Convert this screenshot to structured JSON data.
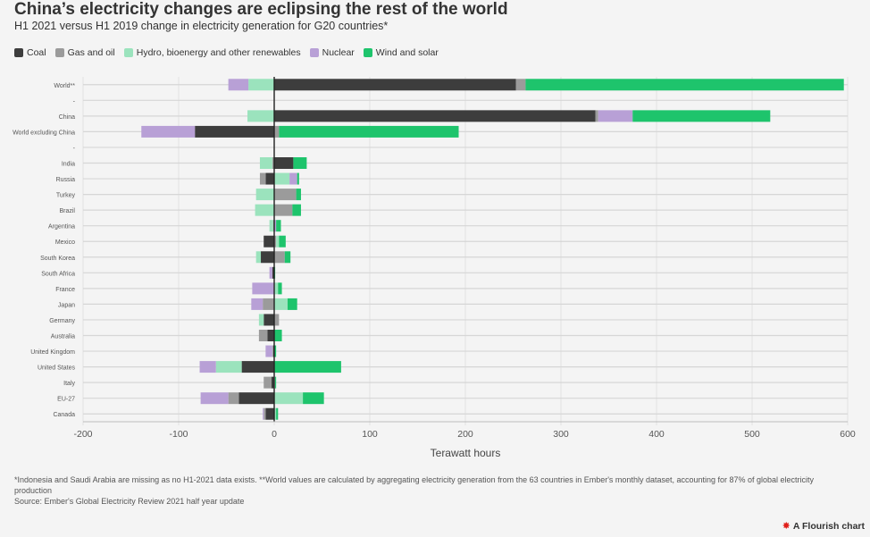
{
  "title": "China’s electricity changes are eclipsing the rest of the world",
  "subtitle": "H1 2021 versus H1 2019 change in electricity generation for G20 countries*",
  "legend": [
    {
      "label": "Coal",
      "color": "#3d3d3d"
    },
    {
      "label": "Gas and oil",
      "color": "#9b9b9b"
    },
    {
      "label": "Hydro, bioenergy and other renewables",
      "color": "#9be3bd"
    },
    {
      "label": "Nuclear",
      "color": "#b8a0d6"
    },
    {
      "label": "Wind and solar",
      "color": "#1ec46c"
    }
  ],
  "notes": {
    "footnote": "*Indonesia and Saudi Arabia are missing as no H1-2021 data exists. **World values are calculated by aggregating electricity generation from the 63 countries in Ember's monthly dataset, accounting for 87% of global electricity production",
    "source": "Source: Ember's Global Electricity Review 2021 half year update"
  },
  "branding": {
    "icon": "✸",
    "label": "A Flourish chart"
  },
  "chart_data": {
    "type": "bar",
    "orientation": "horizontal",
    "stacked": true,
    "title": "China’s electricity changes are eclipsing the rest of the world",
    "subtitle": "H1 2021 versus H1 2019 change in electricity generation for G20 countries*",
    "xlabel": "Terawatt hours",
    "ylabel": "",
    "xlim": [
      -200,
      600
    ],
    "xticks": [
      -200,
      -100,
      0,
      100,
      200,
      300,
      400,
      500,
      600
    ],
    "grid": true,
    "legend_position": "top-left",
    "categories": [
      "World**",
      "-",
      "China",
      "World excluding China",
      "-",
      "India",
      "Russia",
      "Turkey",
      "Brazil",
      "Argentina",
      "Mexico",
      "South Korea",
      "South Africa",
      "France",
      "Japan",
      "Germany",
      "Australia",
      "United Kingdom",
      "United States",
      "Italy",
      "EU-27",
      "Canada"
    ],
    "series": [
      {
        "name": "Coal",
        "color": "#3d3d3d",
        "values": [
          253,
          0,
          336,
          -83,
          0,
          20,
          -9,
          0,
          0,
          0,
          -11,
          -14,
          -2,
          0,
          0,
          -11,
          -7,
          -1,
          -34,
          -3,
          -37,
          -9
        ]
      },
      {
        "name": "Gas and oil",
        "color": "#9b9b9b",
        "values": [
          10,
          0,
          3,
          5,
          0,
          -2,
          -6,
          23,
          19,
          -1,
          2,
          11,
          0,
          0,
          -12,
          5,
          -9,
          -1,
          0,
          -8,
          -11,
          -2
        ]
      },
      {
        "name": "Hydro, bioenergy and other renewables",
        "color": "#9be3bd",
        "values": [
          -27,
          0,
          -28,
          0,
          0,
          -13,
          16,
          -19,
          -20,
          -4,
          3,
          -5,
          0,
          4,
          14,
          -5,
          0,
          0,
          -27,
          1,
          30,
          2
        ]
      },
      {
        "name": "Nuclear",
        "color": "#b8a0d6",
        "values": [
          -21,
          0,
          36,
          -56,
          0,
          0,
          8,
          0,
          0,
          2,
          0,
          0,
          -3,
          -23,
          -12,
          0,
          0,
          -7,
          -17,
          0,
          -29,
          -1
        ]
      },
      {
        "name": "Wind and solar",
        "color": "#1ec46c",
        "values": [
          333,
          0,
          144,
          188,
          0,
          14,
          2,
          5,
          9,
          5,
          7,
          6,
          1,
          4,
          10,
          0,
          8,
          2,
          70,
          1,
          22,
          2
        ]
      }
    ]
  }
}
